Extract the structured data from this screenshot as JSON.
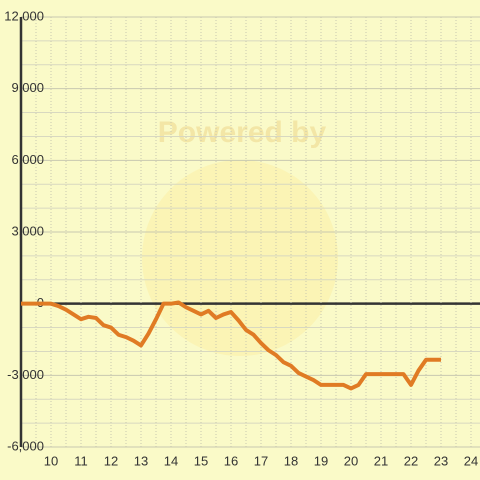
{
  "chart_data": {
    "type": "line",
    "watermark": "Powered by",
    "x": [
      9,
      10,
      10.25,
      10.5,
      10.75,
      11,
      11.25,
      11.5,
      11.75,
      12,
      12.25,
      12.5,
      12.75,
      13,
      13.25,
      13.5,
      13.75,
      14,
      14.25,
      14.5,
      14.75,
      15,
      15.25,
      15.5,
      15.75,
      16,
      16.25,
      16.5,
      16.75,
      17,
      17.25,
      17.5,
      17.75,
      18,
      18.25,
      18.5,
      18.75,
      19,
      19.25,
      19.5,
      19.75,
      20,
      20.25,
      20.5,
      20.75,
      21,
      21.25,
      21.5,
      21.75,
      22,
      22.25,
      22.5,
      22.75,
      23
    ],
    "series": [
      {
        "color": "#e07b24",
        "values": [
          0,
          0,
          -100,
          -250,
          -450,
          -650,
          -550,
          -600,
          -900,
          -1000,
          -1300,
          -1400,
          -1550,
          -1750,
          -1250,
          -650,
          0,
          0,
          50,
          -150,
          -300,
          -450,
          -300,
          -600,
          -450,
          -350,
          -700,
          -1100,
          -1300,
          -1650,
          -1950,
          -2150,
          -2450,
          -2600,
          -2900,
          -3050,
          -3200,
          -3400,
          -3400,
          -3400,
          -3400,
          -3550,
          -3400,
          -2950,
          -2950,
          -2950,
          -2950,
          -2950,
          -2950,
          -3400,
          -2800,
          -2350,
          -2350,
          -2350
        ]
      }
    ],
    "xlim": [
      9,
      24.3
    ],
    "xticks": [
      10,
      11,
      12,
      13,
      14,
      15,
      16,
      17,
      18,
      19,
      20,
      21,
      22,
      23,
      24
    ],
    "ylim": [
      -6000,
      12000
    ],
    "yticks": [
      {
        "value": -6000,
        "label": "-6,000"
      },
      {
        "value": -3000,
        "label": "-3,000"
      },
      0,
      {
        "value": 3000,
        "label": "3,000"
      },
      {
        "value": 6000,
        "label": "6,000"
      },
      {
        "value": 9000,
        "label": "9,000"
      },
      {
        "value": 12000,
        "label": "12,000"
      }
    ],
    "grid": true
  }
}
